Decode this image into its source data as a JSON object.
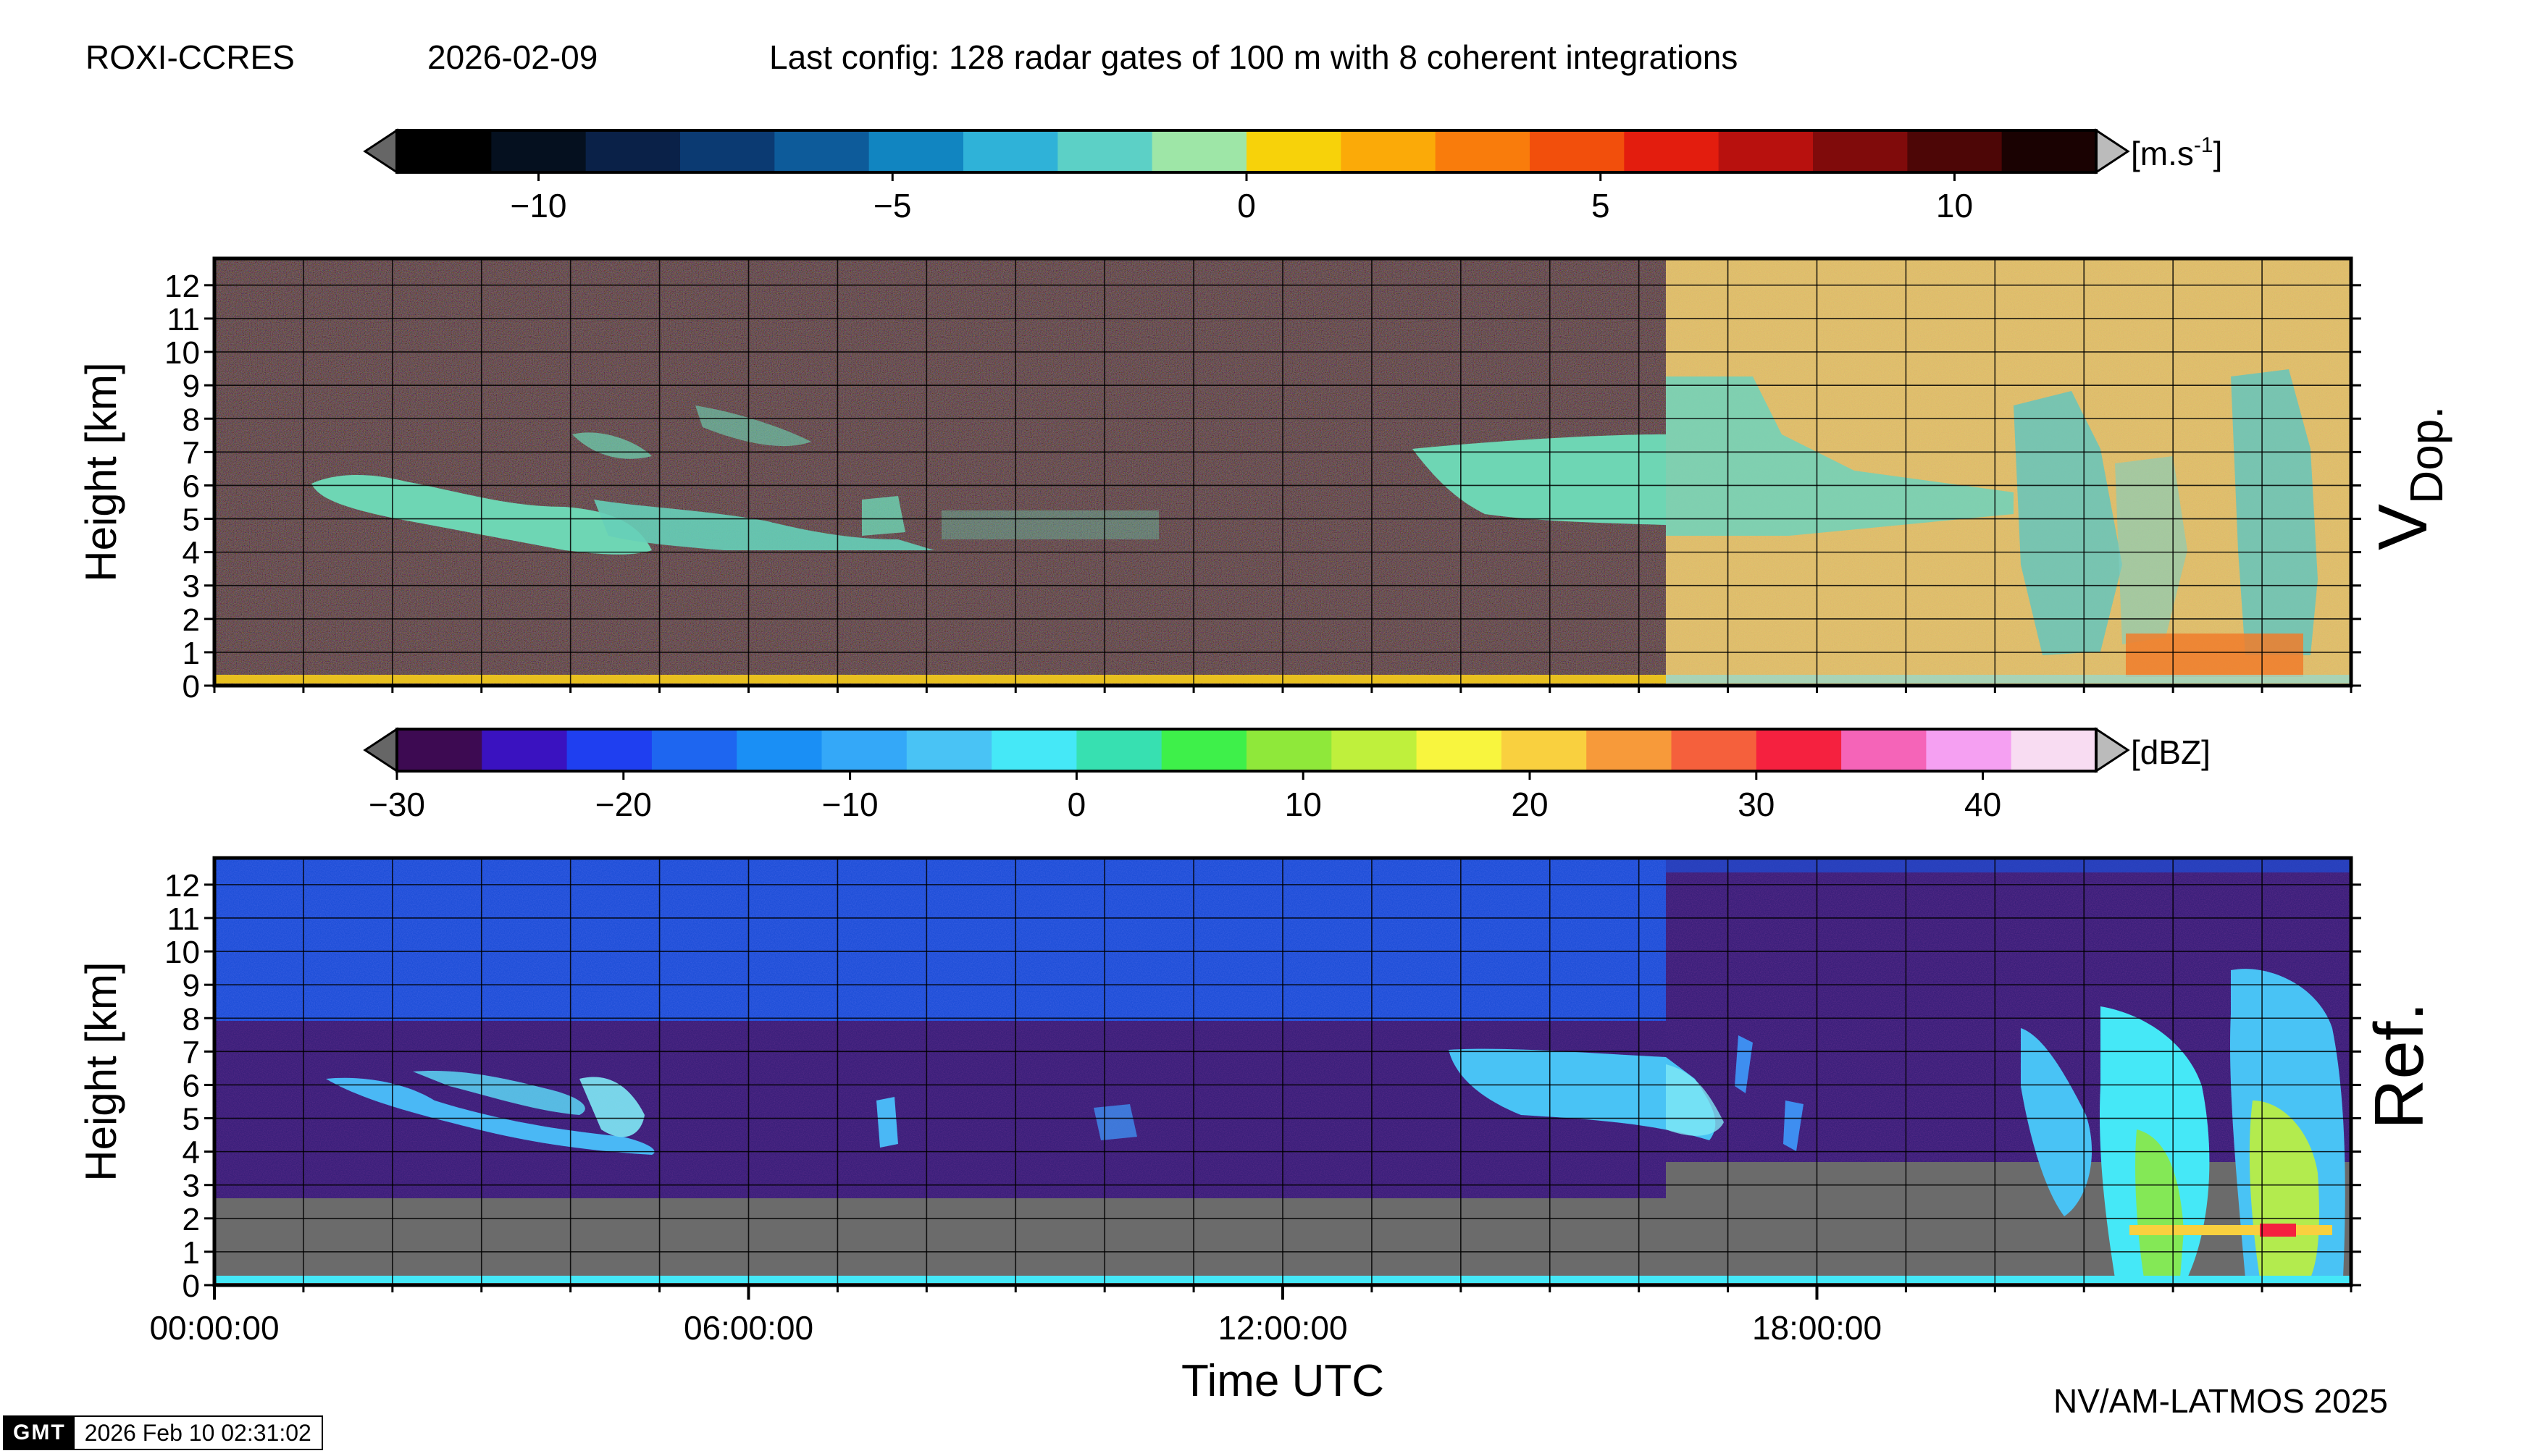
{
  "header": {
    "site": "ROXI-CCRES",
    "date": "2026-02-09",
    "config": "Last config: 128 radar gates of 100 m with 8 coherent integrations"
  },
  "credit": "NV/AM-LATMOS 2025",
  "stamp": {
    "logo": "GMT",
    "text": "2026 Feb 10 02:31:02"
  },
  "chart_data": [
    {
      "type": "heatmap",
      "panel": "Doppler velocity",
      "panel_label_main": "V",
      "panel_label_sub": "Dop.",
      "ylabel": "Height [km]",
      "y_ticks": [
        0,
        1,
        2,
        3,
        4,
        5,
        6,
        7,
        8,
        9,
        10,
        11,
        12
      ],
      "ylim": [
        0,
        12.8
      ],
      "xlim": [
        0,
        24
      ],
      "x_unit": "hours UTC",
      "grid": true,
      "colorbar": {
        "unit_base": "[m.s",
        "unit_sup": "-1",
        "unit_end": "]",
        "range": [
          -12,
          12
        ],
        "ticks": [
          -10,
          -5,
          0,
          5,
          10
        ],
        "tick_labels": [
          "−10",
          "−5",
          "0",
          "5",
          "10"
        ],
        "colors": [
          "#000000",
          "#05101f",
          "#0a2148",
          "#0b3a72",
          "#0d5b9a",
          "#1185c1",
          "#2fb2d8",
          "#5cd0c6",
          "#9ee6a7",
          "#f7d20a",
          "#fbaa08",
          "#f97c0c",
          "#f24f0c",
          "#e31d0e",
          "#b8110e",
          "#800b0b",
          "#4d0606",
          "#1a0202"
        ]
      },
      "approx_regime_change_hour": 16.3,
      "layers_km": [
        {
          "start_h": 1.2,
          "end_h": 4.9,
          "bottom": 3.9,
          "top": 6.2
        },
        {
          "start_h": 13.5,
          "end_h": 16.3,
          "bottom": 4.9,
          "top": 6.6
        }
      ]
    },
    {
      "type": "heatmap",
      "panel": "Reflectivity",
      "panel_label_main": "Ref.",
      "ylabel": "Height [km]",
      "xlabel": "Time UTC",
      "y_ticks": [
        0,
        1,
        2,
        3,
        4,
        5,
        6,
        7,
        8,
        9,
        10,
        11,
        12
      ],
      "ylim": [
        0,
        12.8
      ],
      "xlim": [
        0,
        24
      ],
      "x_ticks": [
        0,
        6,
        12,
        18
      ],
      "x_tick_labels": [
        "00:00:00",
        "06:00:00",
        "12:00:00",
        "18:00:00"
      ],
      "grid": true,
      "colorbar": {
        "unit": "[dBZ]",
        "range": [
          -30,
          45
        ],
        "ticks": [
          -30,
          -20,
          -10,
          0,
          10,
          20,
          30,
          40
        ],
        "tick_labels": [
          "−30",
          "−20",
          "−10",
          "0",
          "10",
          "20",
          "30",
          "40"
        ],
        "colors": [
          "#3d0a52",
          "#3a12c0",
          "#1f3ff0",
          "#1e66f0",
          "#1a8ff5",
          "#34a8f8",
          "#49c3f5",
          "#45e8f7",
          "#37e0b1",
          "#3ef04a",
          "#8fe83a",
          "#bff03c",
          "#f8f53e",
          "#f9d03f",
          "#f79a3a",
          "#f5603c",
          "#f5213f",
          "#f564b8",
          "#f5a0f2",
          "#f8dcf2"
        ]
      }
    }
  ]
}
